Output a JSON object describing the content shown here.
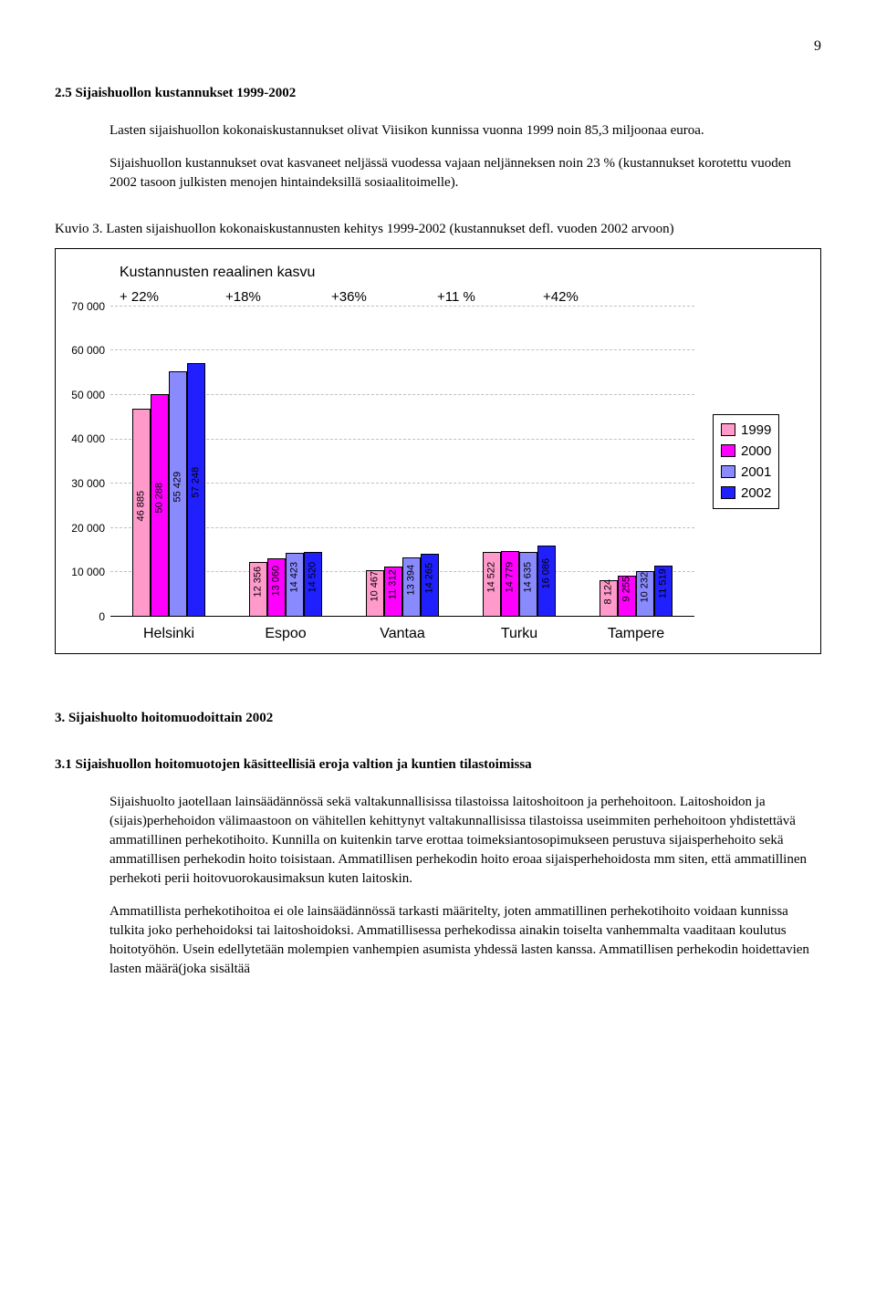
{
  "page_number": "9",
  "section_2_5": {
    "title": "2.5 Sijaishuollon kustannukset 1999-2002",
    "p1": "Lasten sijaishuollon kokonaiskustannukset olivat Viisikon kunnissa vuonna 1999 noin 85,3 miljoonaa euroa.",
    "p2": "Sijaishuollon kustannukset ovat kasvaneet neljässä vuodessa vajaan neljänneksen noin 23 % (kustannukset korotettu vuoden 2002 tasoon julkisten menojen hintaindeksillä sosiaalitoimelle)."
  },
  "figure": {
    "caption": "Kuvio 3. Lasten sijaishuollon kokonaiskustannusten kehitys 1999-2002 (kustannukset defl. vuoden 2002 arvoon)",
    "chart_title": "Kustannusten reaalinen kasvu",
    "growth_labels": [
      "+ 22%",
      "+18%",
      "+36%",
      "+11 %",
      "+42%"
    ],
    "y_ticks": [
      "0",
      "10 000",
      "20 000",
      "30 000",
      "40 000",
      "50 000",
      "60 000",
      "70 000"
    ],
    "y_max": 70000,
    "categories": [
      "Helsinki",
      "Espoo",
      "Vantaa",
      "Turku",
      "Tampere"
    ],
    "series": {
      "1999": {
        "color": "#ff9acb",
        "values": [
          46885,
          12356,
          10467,
          14522,
          8124
        ]
      },
      "2000": {
        "color": "#ff00ff",
        "values": [
          50288,
          13060,
          11312,
          14779,
          9255
        ]
      },
      "2001": {
        "color": "#8a8aff",
        "values": [
          55429,
          14423,
          13394,
          14635,
          10232
        ]
      },
      "2002": {
        "color": "#2020ff",
        "values": [
          57248,
          14520,
          14265,
          16086,
          11519
        ]
      }
    },
    "value_labels": {
      "Helsinki": [
        "46 885",
        "50 288",
        "55 429",
        "57 248"
      ],
      "Espoo": [
        "12 356",
        "13 060",
        "14 423",
        "14 520"
      ],
      "Vantaa": [
        "10 467",
        "11 312",
        "13 394",
        "14 265"
      ],
      "Turku": [
        "14 522",
        "14 779",
        "14 635",
        "16 086"
      ],
      "Tampere": [
        "8 124",
        "9 255",
        "10 232",
        "11 519"
      ]
    },
    "legend": [
      "1999",
      "2000",
      "2001",
      "2002"
    ]
  },
  "section_3": {
    "title": "3. Sijaishuolto hoitomuodoittain 2002",
    "sub_title": "3.1 Sijaishuollon hoitomuotojen käsitteellisiä eroja valtion ja kuntien tilastoimissa",
    "p1": "Sijaishuolto jaotellaan lainsäädännössä sekä valtakunnallisissa tilastoissa laitoshoitoon ja perhehoitoon. Laitoshoidon ja (sijais)perhehoidon välimaastoon on vähitellen kehittynyt valtakunnallisissa tilastoissa useimmiten perhehoitoon yhdistettävä ammatillinen perhekotihoito. Kunnilla on kuitenkin tarve erottaa toimeksiantosopimukseen perustuva sijaisperhehoito sekä ammatillisen perhekodin hoito toisistaan. Ammatillisen perhekodin hoito eroaa sijaisperhehoidosta mm siten, että ammatillinen perhekoti perii hoitovuorokausimaksun kuten laitoskin.",
    "p2": "Ammatillista perhekotihoitoa ei ole lainsäädännössä tarkasti määritelty, joten ammatillinen perhekotihoito voidaan kunnissa tulkita joko perhehoidoksi tai laitoshoidoksi. Ammatillisessa perhekodissa ainakin toiselta vanhemmalta vaaditaan koulutus hoitotyöhön. Usein edellytetään molempien vanhempien asumista yhdessä lasten kanssa. Ammatillisen perhekodin hoidettavien lasten määrä(joka sisältää"
  }
}
